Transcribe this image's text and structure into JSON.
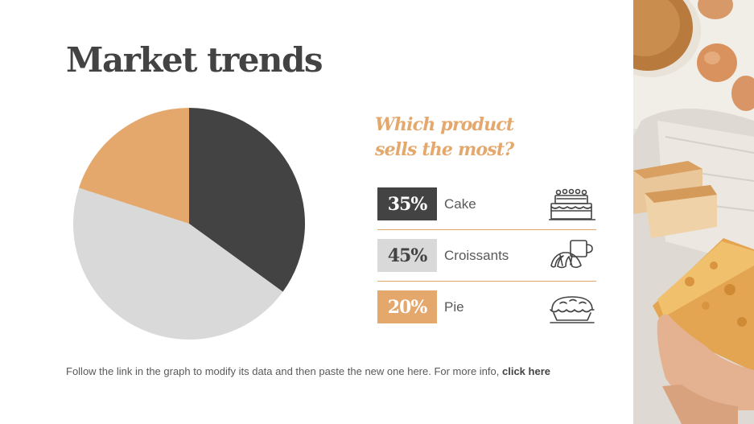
{
  "slide": {
    "title": "Market trends",
    "question_line1": "Which product",
    "question_line2": "sells the most?",
    "footer_text": "Follow the link in the graph to modify its data and then paste the new one here. For more info,",
    "footer_link": "click here"
  },
  "colors": {
    "dark": "#434343",
    "light": "#d9d9d9",
    "accent": "#e4a86d"
  },
  "items": [
    {
      "pct": "35%",
      "label": "Cake",
      "icon": "cake-icon"
    },
    {
      "pct": "45%",
      "label": "Croissants",
      "icon": "croissant-coffee-icon"
    },
    {
      "pct": "20%",
      "label": "Pie",
      "icon": "pie-icon"
    }
  ],
  "chart_data": {
    "type": "pie",
    "categories": [
      "Cake",
      "Croissants",
      "Pie"
    ],
    "values": [
      35,
      45,
      20
    ],
    "colors": [
      "#434343",
      "#d9d9d9",
      "#e4a86d"
    ],
    "start": "12 o'clock, clockwise"
  },
  "image": {
    "subject": "bakery-photo"
  }
}
